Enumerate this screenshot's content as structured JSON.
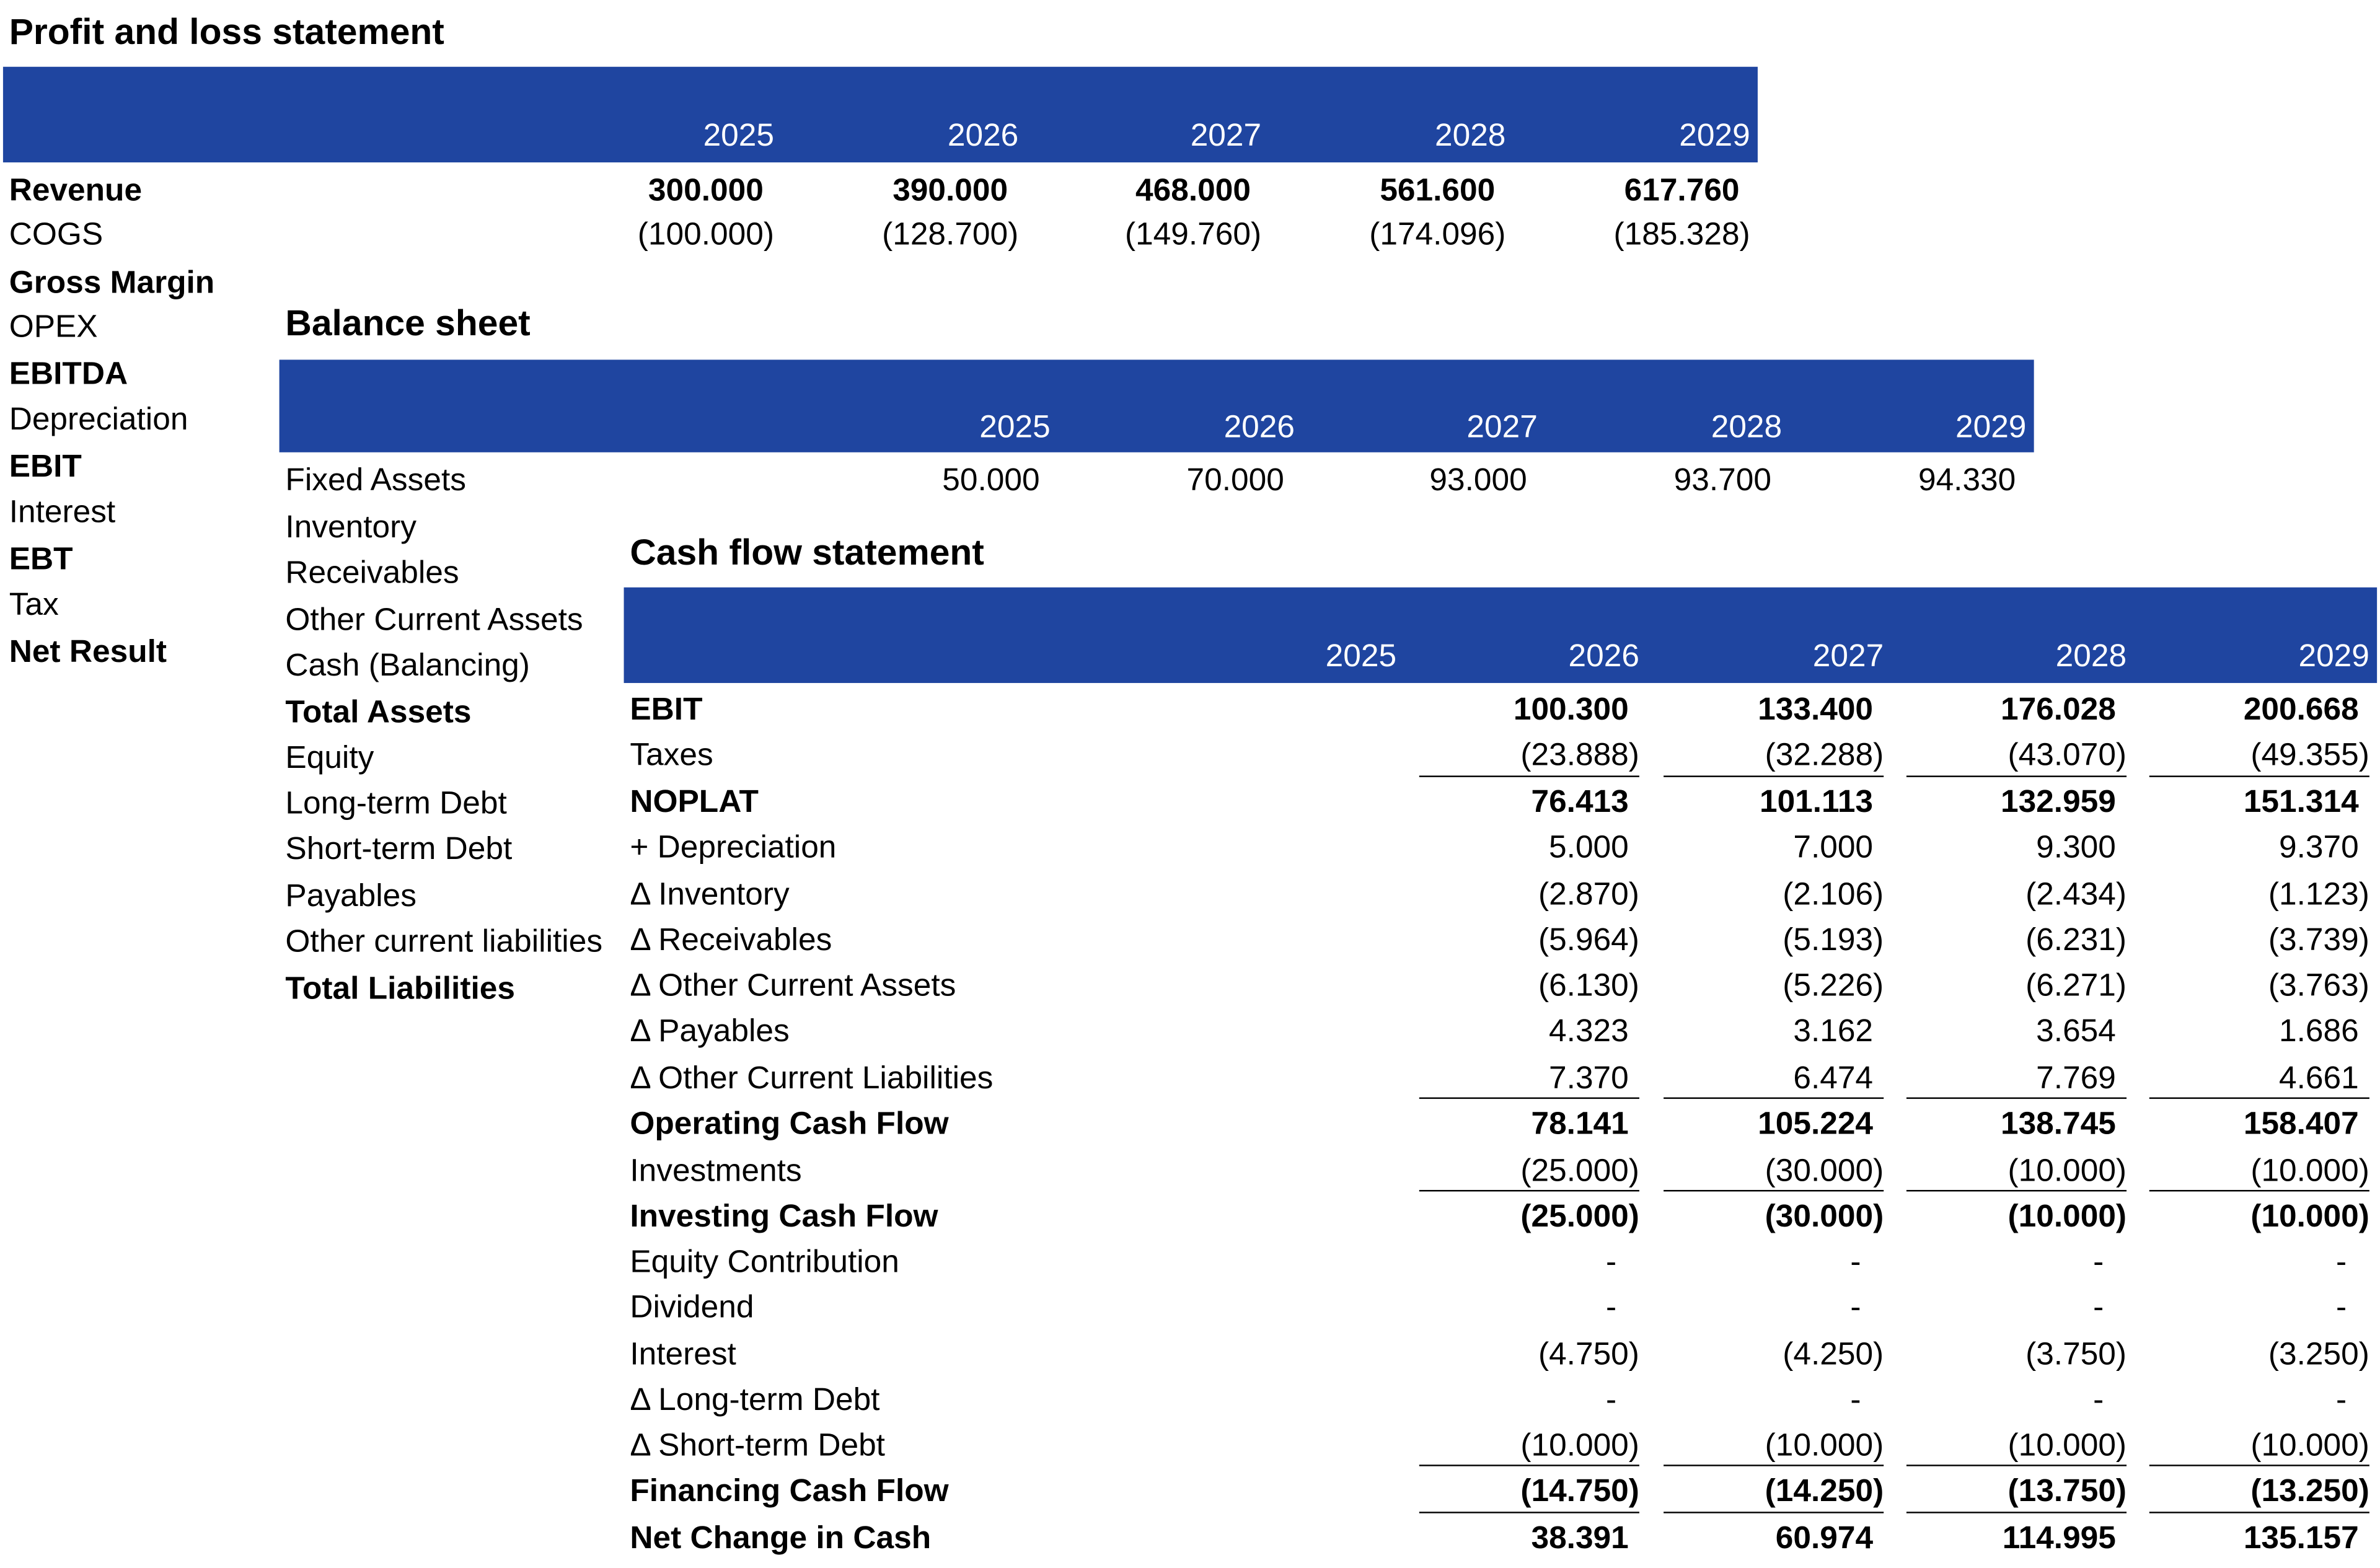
{
  "profit_and_loss": {
    "title": "Profit and loss statement",
    "years": [
      "2025",
      "2026",
      "2027",
      "2028",
      "2029"
    ],
    "rows": [
      {
        "label": "Revenue",
        "bold": true,
        "values": [
          "300.000",
          "390.000",
          "468.000",
          "561.600",
          "617.760"
        ]
      },
      {
        "label": "COGS",
        "values": [
          "(100.000)",
          "(128.700)",
          "(149.760)",
          "(174.096)",
          "(185.328)"
        ]
      },
      {
        "label": "Gross Margin",
        "bold": true
      },
      {
        "label": "OPEX"
      },
      {
        "label": "EBITDA",
        "bold": true
      },
      {
        "label": "Depreciation"
      },
      {
        "label": "EBIT",
        "bold": true
      },
      {
        "label": "Interest"
      },
      {
        "label": "EBT",
        "bold": true
      },
      {
        "label": "Tax"
      },
      {
        "label": "Net Result",
        "bold": true
      }
    ]
  },
  "balance_sheet": {
    "title": "Balance sheet",
    "years": [
      "2025",
      "2026",
      "2027",
      "2028",
      "2029"
    ],
    "rows": [
      {
        "label": "Fixed Assets",
        "values": [
          "50.000",
          "70.000",
          "93.000",
          "93.700",
          "94.330"
        ]
      },
      {
        "label": "Inventory"
      },
      {
        "label": "Receivables"
      },
      {
        "label": "Other Current Assets"
      },
      {
        "label": "Cash (Balancing)"
      },
      {
        "label": "Total Assets",
        "bold": true
      },
      {
        "label": "Equity"
      },
      {
        "label": "Long-term Debt"
      },
      {
        "label": "Short-term Debt"
      },
      {
        "label": "Payables"
      },
      {
        "label": "Other current liabilities"
      },
      {
        "label": "Total Liabilities",
        "bold": true
      }
    ]
  },
  "cash_flow": {
    "title": "Cash flow statement",
    "years": [
      "2025",
      "2026",
      "2027",
      "2028",
      "2029"
    ],
    "rows": [
      {
        "label": "EBIT",
        "bold": true,
        "values": [
          null,
          "100.300",
          "133.400",
          "176.028",
          "200.668"
        ]
      },
      {
        "label": "Taxes",
        "values": [
          null,
          "(23.888)",
          "(32.288)",
          "(43.070)",
          "(49.355)"
        ]
      },
      {
        "label": "NOPLAT",
        "bold": true,
        "rule_above": true,
        "values": [
          null,
          "76.413",
          "101.113",
          "132.959",
          "151.314"
        ]
      },
      {
        "label": "+ Depreciation",
        "values": [
          null,
          "5.000",
          "7.000",
          "9.300",
          "9.370"
        ]
      },
      {
        "label": "Δ Inventory",
        "values": [
          null,
          "(2.870)",
          "(2.106)",
          "(2.434)",
          "(1.123)"
        ]
      },
      {
        "label": "Δ Receivables",
        "values": [
          null,
          "(5.964)",
          "(5.193)",
          "(6.231)",
          "(3.739)"
        ]
      },
      {
        "label": "Δ Other Current Assets",
        "values": [
          null,
          "(6.130)",
          "(5.226)",
          "(6.271)",
          "(3.763)"
        ]
      },
      {
        "label": "Δ Payables",
        "values": [
          null,
          "4.323",
          "3.162",
          "3.654",
          "1.686"
        ]
      },
      {
        "label": "Δ Other Current Liabilities",
        "values": [
          null,
          "7.370",
          "6.474",
          "7.769",
          "4.661"
        ]
      },
      {
        "label": "Operating Cash Flow",
        "bold": true,
        "rule_above": true,
        "values": [
          null,
          "78.141",
          "105.224",
          "138.745",
          "158.407"
        ]
      },
      {
        "label": "Investments",
        "values": [
          null,
          "(25.000)",
          "(30.000)",
          "(10.000)",
          "(10.000)"
        ]
      },
      {
        "label": "Investing Cash Flow",
        "bold": true,
        "rule_above": true,
        "values": [
          null,
          "(25.000)",
          "(30.000)",
          "(10.000)",
          "(10.000)"
        ]
      },
      {
        "label": "Equity Contribution",
        "values": [
          null,
          "-",
          "-",
          "-",
          "-"
        ]
      },
      {
        "label": "Dividend",
        "values": [
          null,
          "-",
          "-",
          "-",
          "-"
        ]
      },
      {
        "label": "Interest",
        "values": [
          null,
          "(4.750)",
          "(4.250)",
          "(3.750)",
          "(3.250)"
        ]
      },
      {
        "label": "Δ Long-term Debt",
        "values": [
          null,
          "-",
          "-",
          "-",
          "-"
        ]
      },
      {
        "label": "Δ Short-term Debt",
        "values": [
          null,
          "(10.000)",
          "(10.000)",
          "(10.000)",
          "(10.000)"
        ]
      },
      {
        "label": "Financing Cash Flow",
        "bold": true,
        "rule_above": true,
        "values": [
          null,
          "(14.750)",
          "(14.250)",
          "(13.750)",
          "(13.250)"
        ]
      },
      {
        "label": "Net Change in Cash",
        "bold": true,
        "rule_above": true,
        "values": [
          null,
          "38.391",
          "60.974",
          "114.995",
          "135.157"
        ]
      }
    ]
  }
}
